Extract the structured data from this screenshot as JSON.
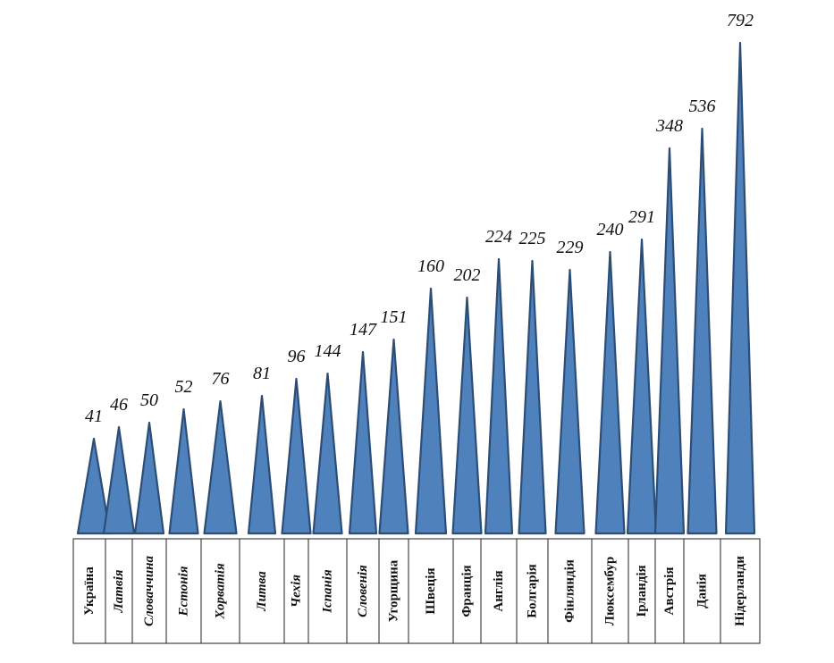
{
  "colors": {
    "fill": "#4f81bd",
    "stroke": "#2c4d75",
    "table_border": "#222222"
  },
  "chart_data": {
    "type": "bar",
    "mark_shape": "triangle",
    "categories": [
      "Україна",
      "Латвія",
      "Словаччина",
      "Естонія",
      "Хорватія",
      "Литва",
      "Чехія",
      "Іспанія",
      "Словенія",
      "Угорщина",
      "Швеція",
      "Франція",
      "Англія",
      "Болгарія",
      "Фінляндія",
      "Люксембур",
      "Ірландія",
      "Австрія",
      "Данія",
      "Нідерланди"
    ],
    "category_italic": [
      false,
      true,
      true,
      true,
      true,
      true,
      true,
      true,
      true,
      false,
      false,
      false,
      false,
      false,
      false,
      false,
      false,
      false,
      false,
      false
    ],
    "values": [
      41,
      46,
      50,
      52,
      76,
      81,
      96,
      144,
      147,
      151,
      160,
      202,
      224,
      225,
      229,
      240,
      291,
      348,
      536,
      792
    ],
    "title": "",
    "xlabel": "",
    "ylabel": "",
    "grid": false,
    "legend": "none"
  }
}
